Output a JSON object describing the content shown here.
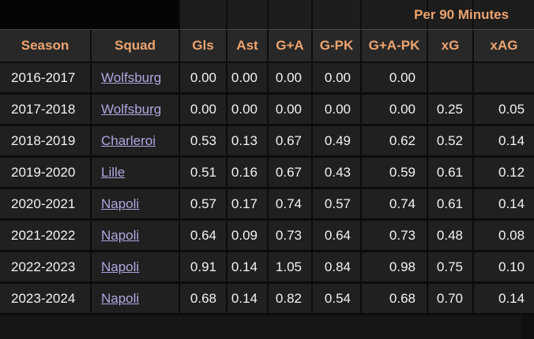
{
  "table": {
    "group_header": "Per 90 Minutes",
    "columns": [
      "Season",
      "Squad",
      "Gls",
      "Ast",
      "G+A",
      "G-PK",
      "G+A-PK",
      "xG",
      "xAG"
    ],
    "rows": [
      [
        "2016-2017",
        "Wolfsburg",
        "0.00",
        "0.00",
        "0.00",
        "0.00",
        "0.00",
        "",
        ""
      ],
      [
        "2017-2018",
        "Wolfsburg",
        "0.00",
        "0.00",
        "0.00",
        "0.00",
        "0.00",
        "0.25",
        "0.05"
      ],
      [
        "2018-2019",
        "Charleroi",
        "0.53",
        "0.13",
        "0.67",
        "0.49",
        "0.62",
        "0.52",
        "0.14"
      ],
      [
        "2019-2020",
        "Lille",
        "0.51",
        "0.16",
        "0.67",
        "0.43",
        "0.59",
        "0.61",
        "0.12"
      ],
      [
        "2020-2021",
        "Napoli",
        "0.57",
        "0.17",
        "0.74",
        "0.57",
        "0.74",
        "0.61",
        "0.14"
      ],
      [
        "2021-2022",
        "Napoli",
        "0.64",
        "0.09",
        "0.73",
        "0.64",
        "0.73",
        "0.48",
        "0.08"
      ],
      [
        "2022-2023",
        "Napoli",
        "0.91",
        "0.14",
        "1.05",
        "0.84",
        "0.98",
        "0.75",
        "0.10"
      ],
      [
        "2023-2024",
        "Napoli",
        "0.68",
        "0.14",
        "0.82",
        "0.54",
        "0.68",
        "0.70",
        "0.14"
      ]
    ]
  },
  "colors": {
    "header_text": "#eda46f",
    "link_text": "#b1a6e0",
    "cell_text": "#f2f2f2",
    "row_background": "#202020",
    "header_background": "#282828",
    "divider": "#0c0c0c"
  }
}
